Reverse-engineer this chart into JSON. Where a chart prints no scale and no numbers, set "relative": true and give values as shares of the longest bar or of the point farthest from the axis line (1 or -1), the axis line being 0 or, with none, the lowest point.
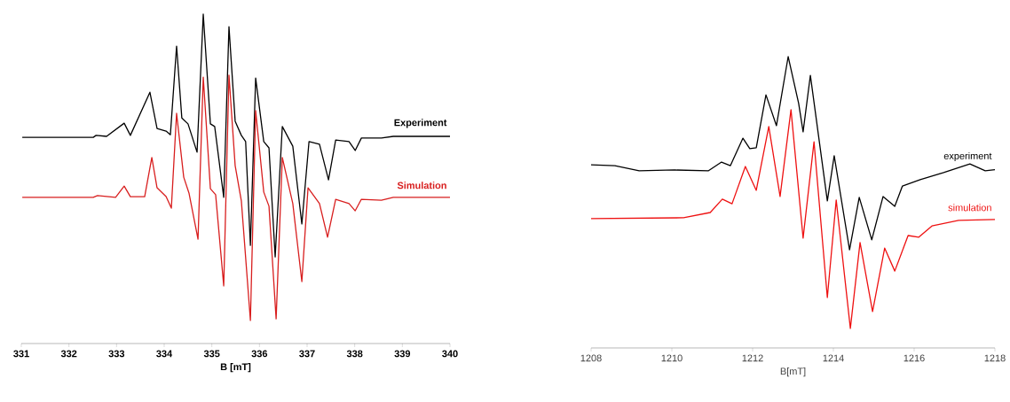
{
  "chart_data": [
    {
      "type": "line",
      "relative": true,
      "xlabel": "B [mT]",
      "xlim": [
        331,
        340
      ],
      "xticks": [
        331,
        332,
        333,
        334,
        335,
        336,
        337,
        338,
        339,
        340
      ],
      "series": [
        {
          "name": "Experiment",
          "color": "#000000",
          "x": [
            331.02,
            332.51,
            332.57,
            332.79,
            333.16,
            333.29,
            333.7,
            333.85,
            334.04,
            334.13,
            334.26,
            334.37,
            334.5,
            334.69,
            334.82,
            334.97,
            335.06,
            335.25,
            335.36,
            335.49,
            335.62,
            335.71,
            335.81,
            335.92,
            336.09,
            336.2,
            336.33,
            336.48,
            336.7,
            336.89,
            337.04,
            337.26,
            337.45,
            337.6,
            337.88,
            338.01,
            338.14,
            338.56,
            338.81,
            340.0
          ],
          "values": [
            0.626,
            0.626,
            0.632,
            0.629,
            0.669,
            0.632,
            0.763,
            0.653,
            0.645,
            0.634,
            0.903,
            0.685,
            0.667,
            0.581,
            1.0,
            0.667,
            0.659,
            0.444,
            0.962,
            0.675,
            0.632,
            0.613,
            0.298,
            0.806,
            0.613,
            0.594,
            0.263,
            0.659,
            0.599,
            0.363,
            0.613,
            0.605,
            0.497,
            0.618,
            0.613,
            0.586,
            0.624,
            0.624,
            0.629,
            0.629
          ]
        },
        {
          "name": "Simulation",
          "color": "#d81e1e",
          "x": [
            331.02,
            332.51,
            332.6,
            332.98,
            333.16,
            333.29,
            333.59,
            333.74,
            333.85,
            334.04,
            334.15,
            334.26,
            334.41,
            334.52,
            334.71,
            334.82,
            334.97,
            335.08,
            335.25,
            335.36,
            335.49,
            335.62,
            335.81,
            335.92,
            336.09,
            336.2,
            336.35,
            336.48,
            336.7,
            336.89,
            337.02,
            337.26,
            337.43,
            337.6,
            337.88,
            338.01,
            338.14,
            338.56,
            338.81,
            340.0
          ],
          "values": [
            0.444,
            0.444,
            0.449,
            0.444,
            0.478,
            0.446,
            0.446,
            0.565,
            0.473,
            0.446,
            0.411,
            0.699,
            0.505,
            0.457,
            0.317,
            0.809,
            0.47,
            0.452,
            0.175,
            0.815,
            0.54,
            0.433,
            0.07,
            0.707,
            0.46,
            0.417,
            0.075,
            0.565,
            0.425,
            0.188,
            0.473,
            0.425,
            0.323,
            0.438,
            0.425,
            0.403,
            0.438,
            0.435,
            0.444,
            0.444
          ]
        }
      ]
    },
    {
      "type": "line",
      "relative": true,
      "xlabel": "B[mT]",
      "xlim": [
        1208,
        1218
      ],
      "xticks": [
        1208,
        1210,
        1212,
        1214,
        1216,
        1218
      ],
      "series": [
        {
          "name": "experiment",
          "color": "#000000",
          "x": [
            1208.0,
            1208.59,
            1209.19,
            1210.07,
            1210.9,
            1211.23,
            1211.45,
            1211.76,
            1211.93,
            1212.09,
            1212.33,
            1212.59,
            1212.88,
            1213.14,
            1213.25,
            1213.43,
            1213.85,
            1214.02,
            1214.4,
            1214.64,
            1214.95,
            1215.23,
            1215.52,
            1215.71,
            1216.15,
            1216.73,
            1217.38,
            1217.76,
            1218.0
          ],
          "values": [
            0.629,
            0.626,
            0.608,
            0.611,
            0.608,
            0.638,
            0.626,
            0.72,
            0.684,
            0.687,
            0.869,
            0.763,
            1.0,
            0.839,
            0.742,
            0.936,
            0.505,
            0.66,
            0.337,
            0.517,
            0.371,
            0.52,
            0.486,
            0.556,
            0.578,
            0.602,
            0.632,
            0.608,
            0.612
          ]
        },
        {
          "name": "simulation",
          "color": "#ee1111",
          "x": [
            1208.0,
            1210.29,
            1210.95,
            1211.25,
            1211.49,
            1211.82,
            1212.09,
            1212.4,
            1212.68,
            1212.95,
            1213.25,
            1213.52,
            1213.85,
            1214.07,
            1214.42,
            1214.66,
            1214.97,
            1215.27,
            1215.52,
            1215.85,
            1216.11,
            1216.44,
            1217.1,
            1218.0
          ],
          "values": [
            0.444,
            0.447,
            0.465,
            0.511,
            0.495,
            0.623,
            0.541,
            0.76,
            0.52,
            0.818,
            0.377,
            0.708,
            0.173,
            0.508,
            0.067,
            0.362,
            0.125,
            0.343,
            0.264,
            0.386,
            0.38,
            0.419,
            0.438,
            0.441
          ]
        }
      ]
    }
  ]
}
